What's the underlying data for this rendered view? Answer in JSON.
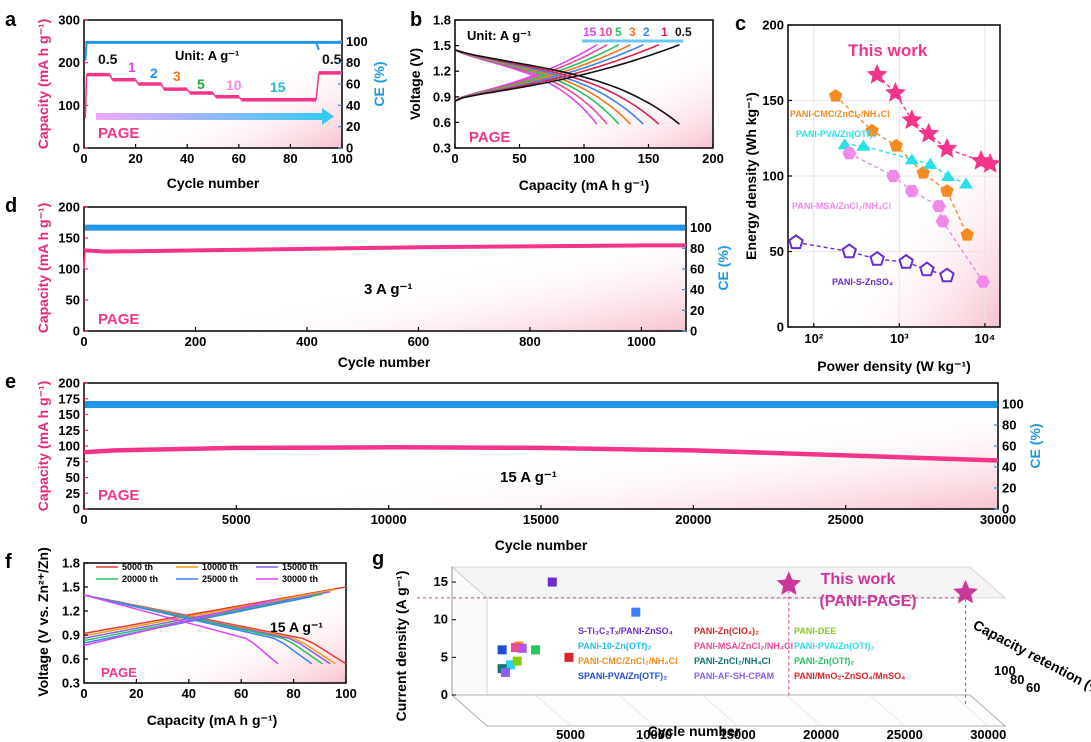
{
  "colors": {
    "pink": "#f2358b",
    "blue": "#2196e8",
    "axisPink": "#e8267e",
    "axisBlue": "#1e98e0"
  },
  "chart_data": [
    {
      "panel": "a",
      "type": "scatter",
      "xlabel": "Cycle number",
      "ylabel_left": "Capacity (mA h g⁻¹)",
      "ylabel_right": "CE (%)",
      "xlim": [
        0,
        100
      ],
      "ylim_left": [
        0,
        300
      ],
      "ylim_right": [
        0,
        120
      ],
      "xticks": [
        "0",
        "20",
        "40",
        "60",
        "80",
        "100"
      ],
      "yticks_left": [
        "0",
        "100",
        "200",
        "300"
      ],
      "yticks_right": [
        "0",
        "20",
        "40",
        "60",
        "80",
        "100"
      ],
      "annotation_unit": "Unit: A g⁻¹",
      "watermark": "PAGE",
      "rate_labels": [
        "0.5",
        "1",
        "2",
        "3",
        "5",
        "10",
        "15",
        "0.5"
      ],
      "segments": [
        {
          "rate": "0.5",
          "x": [
            1,
            10
          ],
          "y": 172
        },
        {
          "rate": "1",
          "x": [
            11,
            20
          ],
          "y": 160
        },
        {
          "rate": "2",
          "x": [
            21,
            30
          ],
          "y": 150
        },
        {
          "rate": "3",
          "x": [
            31,
            40
          ],
          "y": 138
        },
        {
          "rate": "5",
          "x": [
            41,
            50
          ],
          "y": 129
        },
        {
          "rate": "10",
          "x": [
            51,
            60
          ],
          "y": 120
        },
        {
          "rate": "15",
          "x": [
            61,
            90
          ],
          "y": 113
        },
        {
          "rate": "0.5",
          "x": [
            91,
            100
          ],
          "y": 176
        }
      ],
      "ce": 99
    },
    {
      "panel": "b",
      "type": "line",
      "xlabel": "Capacity (mA h g⁻¹)",
      "ylabel": "Voltage (V)",
      "xlim": [
        0,
        200
      ],
      "ylim": [
        0.3,
        1.8
      ],
      "xticks": [
        "0",
        "50",
        "100",
        "150",
        "200"
      ],
      "yticks": [
        "0.3",
        "0.6",
        "0.9",
        "1.2",
        "1.5",
        "1.8"
      ],
      "annotation_unit": "Unit: A g⁻¹",
      "watermark": "PAGE",
      "series": [
        {
          "name": "15",
          "color": "#d946ef",
          "cap": 110
        },
        {
          "name": "10",
          "color": "#ec4899",
          "cap": 118
        },
        {
          "name": "5",
          "color": "#22c55e",
          "cap": 127
        },
        {
          "name": "3",
          "color": "#f97316",
          "cap": 136
        },
        {
          "name": "2",
          "color": "#3b82f6",
          "cap": 146
        },
        {
          "name": "1",
          "color": "#e11d48",
          "cap": 158
        },
        {
          "name": "0.5",
          "color": "#111111",
          "cap": 174
        }
      ]
    },
    {
      "panel": "c",
      "type": "scatter",
      "xlabel": "Power density (W kg⁻¹)",
      "ylabel": "Energy density (Wh kg⁻¹)",
      "xscale": "log",
      "xlim": [
        50,
        15000
      ],
      "ylim": [
        0,
        200
      ],
      "xticks": [
        "10²",
        "10³",
        "10⁴"
      ],
      "yticks": [
        "0",
        "50",
        "100",
        "150",
        "200"
      ],
      "series": [
        {
          "name": "This work",
          "color": "#f2358b",
          "marker": "star",
          "points": [
            [
              550,
              167
            ],
            [
              900,
              155
            ],
            [
              1400,
              137
            ],
            [
              2200,
              128
            ],
            [
              3600,
              118
            ],
            [
              9000,
              110
            ],
            [
              11500,
              108
            ]
          ]
        },
        {
          "name": "PANI-CMC/ZnCl₂/NH₄Cl",
          "color": "#f58a1f",
          "marker": "pentagon",
          "points": [
            [
              180,
              153
            ],
            [
              480,
              130
            ],
            [
              920,
              120
            ],
            [
              1900,
              102
            ],
            [
              3600,
              90
            ],
            [
              6200,
              61
            ]
          ]
        },
        {
          "name": "PANI-PVA/Zn(OTf)₂",
          "color": "#28e0e8",
          "marker": "triangle",
          "points": [
            [
              230,
              121
            ],
            [
              380,
              120
            ],
            [
              1400,
              111
            ],
            [
              2300,
              108
            ],
            [
              3700,
              100
            ],
            [
              6000,
              95
            ]
          ]
        },
        {
          "name": "PANI-MSA/ZnCl₂/NH₄Cl",
          "color": "#f089ea",
          "marker": "hexagon",
          "points": [
            [
              260,
              115
            ],
            [
              850,
              100
            ],
            [
              1400,
              90
            ],
            [
              2900,
              80
            ],
            [
              3200,
              70
            ],
            [
              9500,
              30
            ]
          ]
        },
        {
          "name": "PANI-S-ZnSO₄",
          "color": "#6a2bd1",
          "marker": "pentagon-open",
          "points": [
            [
              62,
              56
            ],
            [
              260,
              50
            ],
            [
              550,
              45
            ],
            [
              1200,
              43
            ],
            [
              2100,
              38
            ],
            [
              3600,
              34
            ]
          ]
        }
      ],
      "title_annotation": "This work"
    },
    {
      "panel": "d",
      "type": "scatter",
      "xlabel": "Cycle number",
      "ylabel_left": "Capacity (mA h g⁻¹)",
      "ylabel_right": "CE (%)",
      "xlim": [
        0,
        1080
      ],
      "ylim_left": [
        0,
        200
      ],
      "ylim_right": [
        0,
        120
      ],
      "xticks": [
        "0",
        "200",
        "400",
        "600",
        "800",
        "1000"
      ],
      "yticks_left": [
        "0",
        "50",
        "100",
        "150",
        "200"
      ],
      "yticks_right": [
        "0",
        "20",
        "40",
        "60",
        "80",
        "100"
      ],
      "annotation": "3 A g⁻¹",
      "watermark": "PAGE",
      "capacity": [
        [
          0,
          130
        ],
        [
          40,
          128
        ],
        [
          200,
          130
        ],
        [
          600,
          135
        ],
        [
          1000,
          138
        ],
        [
          1080,
          138
        ]
      ],
      "ce": 100
    },
    {
      "panel": "e",
      "type": "scatter",
      "xlabel": "Cycle number",
      "ylabel_left": "Capacity (mA h g⁻¹)",
      "ylabel_right": "CE (%)",
      "xlim": [
        0,
        30000
      ],
      "ylim_left": [
        0,
        200
      ],
      "ylim_right": [
        0,
        120
      ],
      "xticks": [
        "0",
        "5000",
        "10000",
        "15000",
        "20000",
        "25000",
        "30000"
      ],
      "yticks_left": [
        "0",
        "25",
        "50",
        "75",
        "100",
        "125",
        "150",
        "175",
        "200"
      ],
      "yticks_right": [
        "0",
        "20",
        "40",
        "60",
        "80",
        "100"
      ],
      "annotation": "15 A g⁻¹",
      "watermark": "PAGE",
      "capacity": [
        [
          0,
          90
        ],
        [
          1000,
          93
        ],
        [
          5000,
          97
        ],
        [
          10000,
          98
        ],
        [
          15000,
          97
        ],
        [
          20000,
          93
        ],
        [
          25000,
          85
        ],
        [
          30000,
          77
        ]
      ],
      "ce": 99.5
    },
    {
      "panel": "f",
      "type": "line",
      "xlabel": "Capacity (mA h g⁻¹)",
      "ylabel": "Voltage (V vs. Zn²⁺/Zn)",
      "xlim": [
        0,
        100
      ],
      "ylim": [
        0.3,
        1.8
      ],
      "xticks": [
        "0",
        "20",
        "40",
        "60",
        "80",
        "100"
      ],
      "yticks": [
        "0.3",
        "0.6",
        "0.9",
        "1.2",
        "1.5",
        "1.8"
      ],
      "annotation": "15 A g⁻¹",
      "watermark": "PAGE",
      "series": [
        {
          "name": "5000 th",
          "color": "#e53935",
          "cap": 100
        },
        {
          "name": "10000 th",
          "color": "#f59e0b",
          "cap": 96
        },
        {
          "name": "15000 th",
          "color": "#8b5cf6",
          "cap": 94
        },
        {
          "name": "20000 th",
          "color": "#22c55e",
          "cap": 91
        },
        {
          "name": "25000 th",
          "color": "#3b82f6",
          "cap": 87
        },
        {
          "name": "30000 th",
          "color": "#d946ef",
          "cap": 74
        }
      ]
    },
    {
      "panel": "g",
      "type": "scatter",
      "xlabel": "Cycle number",
      "ylabel": "Current density (A g⁻¹)",
      "zlabel": "Capacity retention (%)",
      "xticks": [
        "5000",
        "10000",
        "15000",
        "20000",
        "25000",
        "30000"
      ],
      "yticks": [
        "0",
        "5",
        "10",
        "15"
      ],
      "zticks": [
        "60",
        "80",
        "100"
      ],
      "title_annotation": "This work",
      "title_annotation_2": "(PANI-PAGE)",
      "points": [
        {
          "x": 30000,
          "y": 15,
          "z": 86,
          "color": "#c9379b",
          "marker": "star"
        },
        {
          "x": 20000,
          "y": 15,
          "z": 97,
          "color": "#c9379b",
          "marker": "star"
        },
        {
          "x": 6000,
          "y": 15,
          "z": 100,
          "color": "#6a2bd1"
        },
        {
          "x": 11000,
          "y": 11,
          "z": 100,
          "color": "#3b82f6"
        },
        {
          "x": 7000,
          "y": 5,
          "z": 100,
          "color": "#dc2626"
        },
        {
          "x": 5000,
          "y": 6,
          "z": 100,
          "color": "#22c55e"
        },
        {
          "x": 4000,
          "y": 6.5,
          "z": 100,
          "color": "#f58a1f"
        },
        {
          "x": 4200,
          "y": 6.2,
          "z": 100,
          "color": "#a855f7"
        },
        {
          "x": 3000,
          "y": 6,
          "z": 100,
          "color": "#1d4ed8"
        },
        {
          "x": 3500,
          "y": 4,
          "z": 100,
          "color": "#22d3ee"
        },
        {
          "x": 3000,
          "y": 3.5,
          "z": 100,
          "color": "#0f766e"
        },
        {
          "x": 3200,
          "y": 3,
          "z": 100,
          "color": "#8b5cf6"
        },
        {
          "x": 3800,
          "y": 6.3,
          "z": 100,
          "color": "#ec4899"
        },
        {
          "x": 3900,
          "y": 4.5,
          "z": 100,
          "color": "#84cc16"
        }
      ],
      "legend": [
        {
          "name": "S-Ti₃C₂Tₓ/PANI-ZnSO₄",
          "color": "#6a2bd1"
        },
        {
          "name": "PANI-Zn(ClO₄)₂",
          "color": "#dc2626"
        },
        {
          "name": "PANI-DEE",
          "color": "#84cc16"
        },
        {
          "name": "PANI-10-Zn(OTf)₂",
          "color": "#22c1e8"
        },
        {
          "name": "PANI-MSA/ZnCl₂/NH₄Cl",
          "color": "#ec4899"
        },
        {
          "name": "PANI-PVA/Zn(OTf)₂",
          "color": "#28e0e8"
        },
        {
          "name": "PANI-CMC/ZnCl₂/NH₄Cl",
          "color": "#f58a1f"
        },
        {
          "name": "PANI-ZnCl₂/NH₄Cl",
          "color": "#0f766e"
        },
        {
          "name": "PANI-Zn(OTf)₂",
          "color": "#22c55e"
        },
        {
          "name": "SPANI-PVA/Zn(OTF)₂",
          "color": "#1d4ed8"
        },
        {
          "name": "PANI-AF-SH-CPAM",
          "color": "#8b5cf6"
        },
        {
          "name": "PANI/MnO₂-ZnSO₄/MnSO₄",
          "color": "#dc2626"
        }
      ]
    }
  ]
}
